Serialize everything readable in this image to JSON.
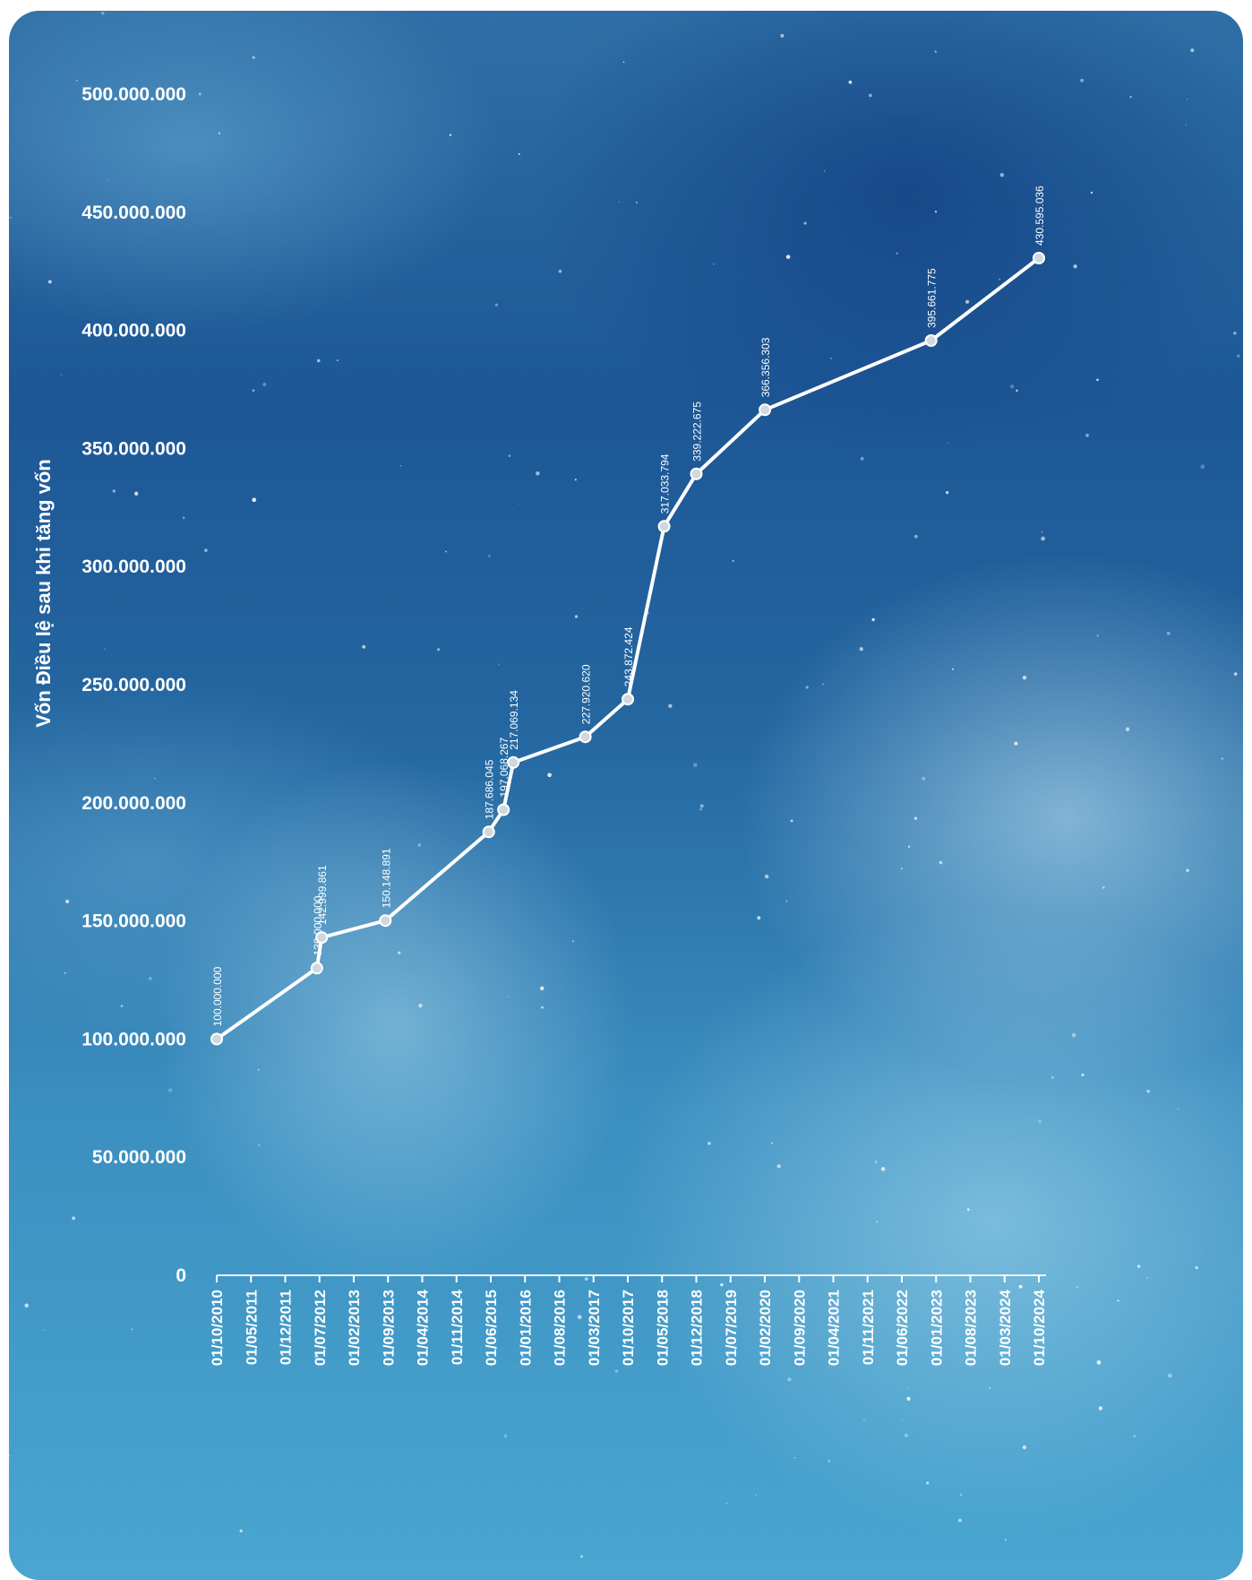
{
  "chart_data": {
    "type": "line",
    "title": "",
    "xlabel": "",
    "ylabel": "Vốn Điều lệ sau khi tăng vốn",
    "ylim": [
      0,
      500000000
    ],
    "yticks": [
      0,
      50000000,
      100000000,
      150000000,
      200000000,
      250000000,
      300000000,
      350000000,
      400000000,
      450000000,
      500000000
    ],
    "ytick_labels": [
      "0",
      "50.000.000",
      "100.000.000",
      "150.000.000",
      "200.000.000",
      "250.000.000",
      "300.000.000",
      "350.000.000",
      "400.000.000",
      "450.000.000",
      "500.000.000"
    ],
    "xticks": [
      "01/10/2010",
      "01/05/2011",
      "01/12/2011",
      "01/07/2012",
      "01/02/2013",
      "01/09/2013",
      "01/04/2014",
      "01/11/2014",
      "01/06/2015",
      "01/01/2016",
      "01/08/2016",
      "01/03/2017",
      "01/10/2017",
      "01/05/2018",
      "01/12/2018",
      "01/07/2019",
      "01/02/2020",
      "01/09/2020",
      "01/04/2021",
      "01/11/2021",
      "01/06/2022",
      "01/01/2023",
      "01/08/2023",
      "01/03/2024",
      "01/10/2024"
    ],
    "grid": false,
    "series": [
      {
        "points": [
          {
            "x": "2010-10-01",
            "y": 100000000,
            "label": "100.000.000"
          },
          {
            "x": "2012-06-15",
            "y": 130000000,
            "label": "130.000.000"
          },
          {
            "x": "2012-07-15",
            "y": 142999861,
            "label": "142.999.861"
          },
          {
            "x": "2013-08-15",
            "y": 150148891,
            "label": "150.148.891"
          },
          {
            "x": "2015-05-20",
            "y": 187686045,
            "label": "187.686.045"
          },
          {
            "x": "2015-08-20",
            "y": 197068267,
            "label": "197.068.267"
          },
          {
            "x": "2015-10-20",
            "y": 217069134,
            "label": "217.069.134"
          },
          {
            "x": "2017-01-10",
            "y": 227920620,
            "label": "227.920.620"
          },
          {
            "x": "2017-10-01",
            "y": 243872424,
            "label": "243.872.424"
          },
          {
            "x": "2018-05-15",
            "y": 317033794,
            "label": "317.033.794"
          },
          {
            "x": "2018-12-01",
            "y": 339222675,
            "label": "339.222.675"
          },
          {
            "x": "2020-02-01",
            "y": 366356303,
            "label": "366.356.303"
          },
          {
            "x": "2022-12-01",
            "y": 395661775,
            "label": "395.661.775"
          },
          {
            "x": "2024-10-01",
            "y": 430595036,
            "label": "430.595.036"
          }
        ]
      }
    ]
  }
}
